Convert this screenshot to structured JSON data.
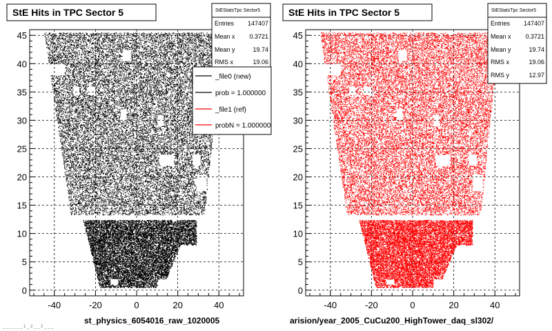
{
  "chart_data": [
    {
      "type": "scatter",
      "title": "StE Hits in TPC Sector 5",
      "xlabel": "",
      "ylabel": "",
      "xlim": [
        -52,
        52
      ],
      "ylim": [
        -1,
        46
      ],
      "xticks": [
        -40,
        -20,
        0,
        20,
        40
      ],
      "yticks": [
        0,
        5,
        10,
        15,
        20,
        25,
        30,
        35,
        40,
        45
      ],
      "grid": true,
      "color": "#000000",
      "stats": {
        "name": "StEStatsTpc Sector5",
        "entries_label": "Entries",
        "entries": "147407",
        "meanx_label": "Mean x",
        "meanx": "0.3721",
        "meany_label": "Mean y",
        "meany": "19.74",
        "rmsx_label": "RMS x",
        "rmsx": "19.06"
      },
      "legend": {
        "placement": "top-right",
        "entries": [
          {
            "label": "_file0 (new)",
            "color": "#000000"
          },
          {
            "label": "prob = 1.000000",
            "color": "#000000"
          },
          {
            "label": "_file1 (ref)",
            "color": "#ff0000"
          },
          {
            "label": "probN = 1.000000",
            "color": "#ff0000"
          }
        ]
      },
      "footer": "st_physics_6054016_raw_1020005",
      "footer_small": "_ _ _ _ _ _ 1 _ 2 _ _ 2 _ _ _"
    },
    {
      "type": "scatter",
      "title": "StE Hits in TPC Sector 5",
      "xlabel": "",
      "ylabel": "",
      "xlim": [
        -52,
        52
      ],
      "ylim": [
        -1,
        46
      ],
      "xticks": [
        -40,
        -20,
        0,
        20,
        40
      ],
      "yticks": [
        0,
        5,
        10,
        15,
        20,
        25,
        30,
        35,
        40,
        45
      ],
      "grid": true,
      "color": "#ff0000",
      "stats": {
        "name": "StEStatsTpc Sector5",
        "entries_label": "Entries",
        "entries": "147407",
        "meanx_label": "Mean x",
        "meanx": "0.3721",
        "meany_label": "Mean y",
        "meany": "19.74",
        "rmsx_label": "RMS x",
        "rmsx": "19.06",
        "rmsy_label": "RMS y",
        "rmsy": "12.97"
      },
      "footer": "arision/year_2005_CuCu200_HighTower_daq_sl302/"
    }
  ]
}
